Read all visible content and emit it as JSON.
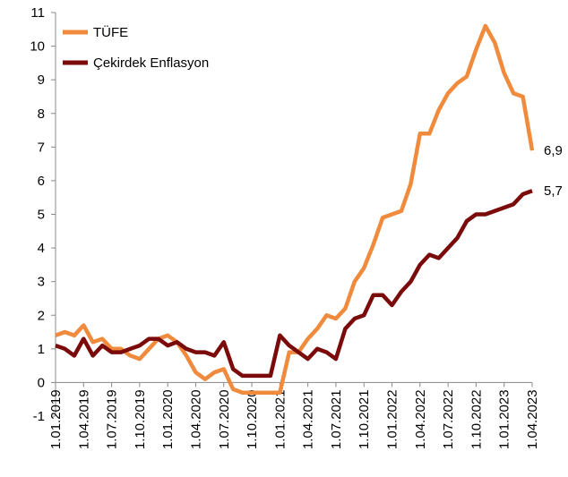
{
  "chart_data": {
    "type": "line",
    "categories": [
      "1.01.2019",
      null,
      null,
      "1.04.2019",
      null,
      null,
      "1.07.2019",
      null,
      null,
      "1.10.2019",
      null,
      null,
      "1.01.2020",
      null,
      null,
      "1.04.2020",
      null,
      null,
      "1.07.2020",
      null,
      null,
      "1.10.2020",
      null,
      null,
      "1.01.2021",
      null,
      null,
      "1.04.2021",
      null,
      null,
      "1.07.2021",
      null,
      null,
      "1.10.2021",
      null,
      null,
      "1.01.2022",
      null,
      null,
      "1.04.2022",
      null,
      null,
      "1.07.2022",
      null,
      null,
      "1.10.2022",
      null,
      null,
      "1.01.2023",
      null,
      null,
      "1.04.2023"
    ],
    "series": [
      {
        "name": "TÜFE",
        "color": "#f08a3c",
        "values": [
          1.4,
          1.5,
          1.4,
          1.7,
          1.2,
          1.3,
          1.0,
          1.0,
          0.8,
          0.7,
          1.0,
          1.3,
          1.4,
          1.2,
          0.8,
          0.3,
          0.1,
          0.3,
          0.4,
          -0.2,
          -0.3,
          -0.3,
          -0.3,
          -0.3,
          -0.3,
          0.9,
          0.9,
          1.3,
          1.6,
          2.0,
          1.9,
          2.2,
          3.0,
          3.4,
          4.1,
          4.9,
          5.0,
          5.1,
          5.9,
          7.4,
          7.4,
          8.1,
          8.6,
          8.9,
          9.1,
          9.9,
          10.6,
          10.1,
          9.2,
          8.6,
          8.5,
          6.9
        ],
        "value_labels": [
          null,
          null,
          null,
          null,
          null,
          null,
          null,
          null,
          null,
          null,
          null,
          null,
          null,
          null,
          null,
          null,
          null,
          null,
          null,
          null,
          null,
          null,
          null,
          null,
          null,
          null,
          null,
          null,
          null,
          null,
          null,
          null,
          null,
          null,
          null,
          null,
          null,
          null,
          null,
          null,
          null,
          null,
          null,
          null,
          null,
          null,
          null,
          null,
          null,
          null,
          null,
          "6,9"
        ]
      },
      {
        "name": "Çekirdek Enflasyon",
        "color": "#7b0a0a",
        "values": [
          1.1,
          1.0,
          0.8,
          1.3,
          0.8,
          1.1,
          0.9,
          0.9,
          1.0,
          1.1,
          1.3,
          1.3,
          1.1,
          1.2,
          1.0,
          0.9,
          0.9,
          0.8,
          1.2,
          0.4,
          0.2,
          0.2,
          0.2,
          0.2,
          1.4,
          1.1,
          0.9,
          0.7,
          1.0,
          0.9,
          0.7,
          1.6,
          1.9,
          2.0,
          2.6,
          2.6,
          2.3,
          2.7,
          3.0,
          3.5,
          3.8,
          3.7,
          4.0,
          4.3,
          4.8,
          5.0,
          5.0,
          5.1,
          5.2,
          5.3,
          5.6,
          5.7
        ],
        "value_labels": [
          null,
          null,
          null,
          null,
          null,
          null,
          null,
          null,
          null,
          null,
          null,
          null,
          null,
          null,
          null,
          null,
          null,
          null,
          null,
          null,
          null,
          null,
          null,
          null,
          null,
          null,
          null,
          null,
          null,
          null,
          null,
          null,
          null,
          null,
          null,
          null,
          null,
          null,
          null,
          null,
          null,
          null,
          null,
          null,
          null,
          null,
          null,
          null,
          null,
          null,
          null,
          "5,7"
        ]
      }
    ],
    "ylim": [
      -1,
      11
    ],
    "yticks": [
      -1,
      0,
      1,
      2,
      3,
      4,
      5,
      6,
      7,
      8,
      9,
      10,
      11
    ],
    "grid": false,
    "legend": "top-left"
  }
}
